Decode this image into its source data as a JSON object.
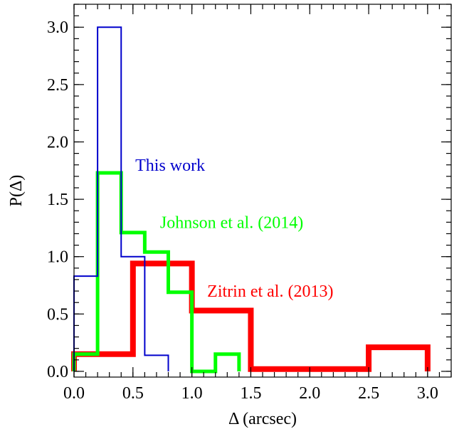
{
  "chart_data": {
    "type": "histogram-step",
    "xlabel": "Δ (arcsec)",
    "ylabel": "P(Δ)",
    "xlim": [
      0.0,
      3.2
    ],
    "ylim": [
      -0.05,
      3.2
    ],
    "x_ticks": [
      {
        "value": 0.0,
        "label": "0.0"
      },
      {
        "value": 0.5,
        "label": "0.5"
      },
      {
        "value": 1.0,
        "label": "1.0"
      },
      {
        "value": 1.5,
        "label": "1.5"
      },
      {
        "value": 2.0,
        "label": "2.0"
      },
      {
        "value": 2.5,
        "label": "2.5"
      },
      {
        "value": 3.0,
        "label": "3.0"
      }
    ],
    "y_ticks": [
      {
        "value": 0.0,
        "label": "0.0"
      },
      {
        "value": 0.5,
        "label": "0.5"
      },
      {
        "value": 1.0,
        "label": "1.0"
      },
      {
        "value": 1.5,
        "label": "1.5"
      },
      {
        "value": 2.0,
        "label": "2.0"
      },
      {
        "value": 2.5,
        "label": "2.5"
      },
      {
        "value": 3.0,
        "label": "3.0"
      }
    ],
    "x_minor_step": 0.1,
    "y_minor_step": 0.1,
    "grid": false,
    "series": [
      {
        "name": "Zitrin et al. (2013)",
        "color": "#ff0000",
        "line_style": "thick",
        "edges": [
          0.0,
          0.5,
          1.0,
          1.5,
          2.0,
          2.5,
          3.0
        ],
        "values": [
          0.15,
          0.94,
          0.53,
          0.02,
          0.02,
          0.21
        ]
      },
      {
        "name": "Johnson et al. (2014)",
        "color": "#00ff00",
        "line_style": "medium",
        "edges": [
          0.0,
          0.2,
          0.4,
          0.6,
          0.8,
          1.0,
          1.2,
          1.4
        ],
        "values": [
          0.15,
          1.73,
          1.21,
          1.04,
          0.69,
          0.0,
          0.15
        ]
      },
      {
        "name": "This work",
        "color": "#0000cc",
        "line_style": "thin",
        "edges": [
          0.0,
          0.2,
          0.4,
          0.6,
          0.8
        ],
        "values": [
          0.83,
          3.0,
          1.0,
          0.14
        ]
      }
    ],
    "annotations": [
      {
        "text": "This work",
        "color": "#0000cc",
        "x": 0.52,
        "y": 1.75
      },
      {
        "text": "Johnson et al. (2014)",
        "color": "#00ff00",
        "x": 0.73,
        "y": 1.25
      },
      {
        "text": "Zitrin et al. (2013)",
        "color": "#ff0000",
        "x": 1.13,
        "y": 0.65
      }
    ]
  }
}
